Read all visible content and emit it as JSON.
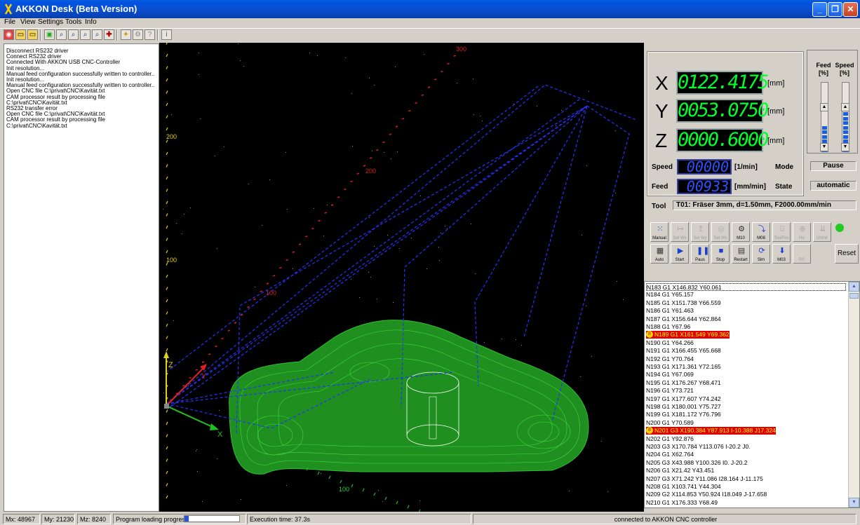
{
  "window": {
    "title": "AKKON Desk (Beta Version)"
  },
  "menu": [
    "File",
    "View",
    "Settings",
    "Tools",
    "Info"
  ],
  "log": [
    "Disconnect RS232 driver",
    "Connect RS232 driver",
    "Connected With AKKON USB CNC-Controller",
    "Init resolution...",
    "Manual feed configuration successfully written to controller..",
    "Init resolution...",
    "Manual feed configuration successfully written to controller..",
    "Open CNC file C:\\privat\\CNC\\Kavität.txt",
    "CAM processor result by processing file",
    "C:\\privat\\CNC\\Kavität.txt",
    "RS232 transfer error",
    "Open CNC file C:\\privat\\CNC\\Kavität.txt",
    "CAM processor result by processing file",
    "C:\\privat\\CNC\\Kavität.txt"
  ],
  "viewport": {
    "axis_x_label": "X",
    "axis_y_label": "Y",
    "axis_z_label": "Z",
    "ticks": [
      "300",
      "200",
      "100",
      "200",
      "100",
      "100"
    ]
  },
  "position": {
    "x_label": "X",
    "x_value": "0122.4175",
    "y_label": "Y",
    "y_value": "0053.0750",
    "z_label": "Z",
    "z_value": "0000.6000",
    "unit": "[mm]"
  },
  "overrides": {
    "feed_label": "Feed",
    "feed_unit": "[%]",
    "speed_label": "Speed",
    "speed_unit": "[%]",
    "feed_level": 0.45,
    "speed_level": 0.75
  },
  "status": {
    "speed_label": "Speed",
    "speed_value": "00000",
    "speed_unit": "[1/min]",
    "feed_label": "Feed",
    "feed_value": "00933",
    "feed_unit": "[mm/min]",
    "mode_label": "Mode",
    "mode_value": "Pause",
    "state_label": "State",
    "state_value": "automatic",
    "tool_label": "Tool",
    "tool_value": "T01: Fräser 3mm, d=1.50mm, F2000.00mm/min"
  },
  "controls_row1": [
    {
      "label": "Manual",
      "icon": "manual-icon",
      "enabled": true
    },
    {
      "label": "Set Wx",
      "icon": "set-wx-icon",
      "enabled": false
    },
    {
      "label": "Set Wy",
      "icon": "set-wy-icon",
      "enabled": false
    },
    {
      "label": "Set Ws",
      "icon": "set-ws-icon",
      "enabled": false
    },
    {
      "label": "M10",
      "icon": "m10-icon",
      "enabled": true
    },
    {
      "label": "M08",
      "icon": "m08-icon",
      "enabled": true
    },
    {
      "label": "ToolPos",
      "icon": "toolpos-icon",
      "enabled": false
    },
    {
      "label": "Ho",
      "icon": "home-icon",
      "enabled": false
    },
    {
      "label": "UnInit",
      "icon": "uninit-icon",
      "enabled": false
    }
  ],
  "controls_row2": [
    {
      "label": "Auto",
      "icon": "auto-icon",
      "enabled": true
    },
    {
      "label": "Start",
      "icon": "play-icon",
      "enabled": true
    },
    {
      "label": "Paus",
      "icon": "pause-icon",
      "enabled": true
    },
    {
      "label": "Stop",
      "icon": "stop-icon",
      "enabled": true
    },
    {
      "label": "Restart",
      "icon": "restart-icon",
      "enabled": true
    },
    {
      "label": "Sim",
      "icon": "sim-icon",
      "enabled": true
    },
    {
      "label": "M03",
      "icon": "m03-icon",
      "enabled": true
    },
    {
      "label": "R0",
      "icon": "r0-icon",
      "enabled": false
    }
  ],
  "reset_label": "Reset",
  "code_lines": [
    {
      "text": "N183 G1 X146.832 Y60.061",
      "hl": false
    },
    {
      "text": "N184 G1 Y65.157",
      "hl": false
    },
    {
      "text": "N185 G1 X151.738 Y66.559",
      "hl": false
    },
    {
      "text": "N186 G1 Y61.463",
      "hl": false
    },
    {
      "text": "N187 G1 X156.644 Y62.864",
      "hl": false
    },
    {
      "text": "N188 G1 Y67.96",
      "hl": false
    },
    {
      "text": "N189 G1 X161.549 Y69.362",
      "hl": true
    },
    {
      "text": "N190 G1 Y64.266",
      "hl": false
    },
    {
      "text": "N191 G1 X166.455 Y65.668",
      "hl": false
    },
    {
      "text": "N192 G1 Y70.764",
      "hl": false
    },
    {
      "text": "N193 G1 X171.361 Y72.165",
      "hl": false
    },
    {
      "text": "N194 G1 Y67.069",
      "hl": false
    },
    {
      "text": "N195 G1 X176.267 Y68.471",
      "hl": false
    },
    {
      "text": "N196 G1 Y73.721",
      "hl": false
    },
    {
      "text": "N197 G1 X177.607 Y74.242",
      "hl": false
    },
    {
      "text": "N198 G1 X180.001 Y75.727",
      "hl": false
    },
    {
      "text": "N199 G1 X181.172 Y76.796",
      "hl": false
    },
    {
      "text": "N200 G1 Y70.589",
      "hl": false
    },
    {
      "text": "N201 G3 X190.384 Y87.913 I-10.388 J17.324",
      "hl": true
    },
    {
      "text": "N202 G1 Y92.876",
      "hl": false
    },
    {
      "text": "N203 G3 X170.784 Y113.076 I-20.2 J0.",
      "hl": false
    },
    {
      "text": "N204 G1 X62.764",
      "hl": false
    },
    {
      "text": "N205 G3 X43.988 Y100.326 I0. J-20.2",
      "hl": false
    },
    {
      "text": "N206 G1 X21.42 Y43.451",
      "hl": false
    },
    {
      "text": "N207 G3 X71.242 Y11.086 I28.164 J-11.175",
      "hl": false
    },
    {
      "text": "N208 G1 X103.741 Y44.304",
      "hl": false
    },
    {
      "text": "N209 G2 X114.853 Y50.924 I18.049 J-17.658",
      "hl": false
    },
    {
      "text": "N210 G1 X176.333 Y68.49",
      "hl": false
    }
  ],
  "statusbar": {
    "mx": "Mx: 48967",
    "my": "My: 21230",
    "mz": "Mz: 8240",
    "progress_label": "Program loading progress:",
    "progress": 0.08,
    "exec": "Execution time: 37.3s",
    "connection": "connected to AKKON CNC controller"
  },
  "colors": {
    "accent": "#0054e3",
    "lcd_green": "#00ff2a",
    "lcd_blue": "#2e52ff",
    "highlight": "#e00000",
    "model": "#1f8f1f"
  }
}
